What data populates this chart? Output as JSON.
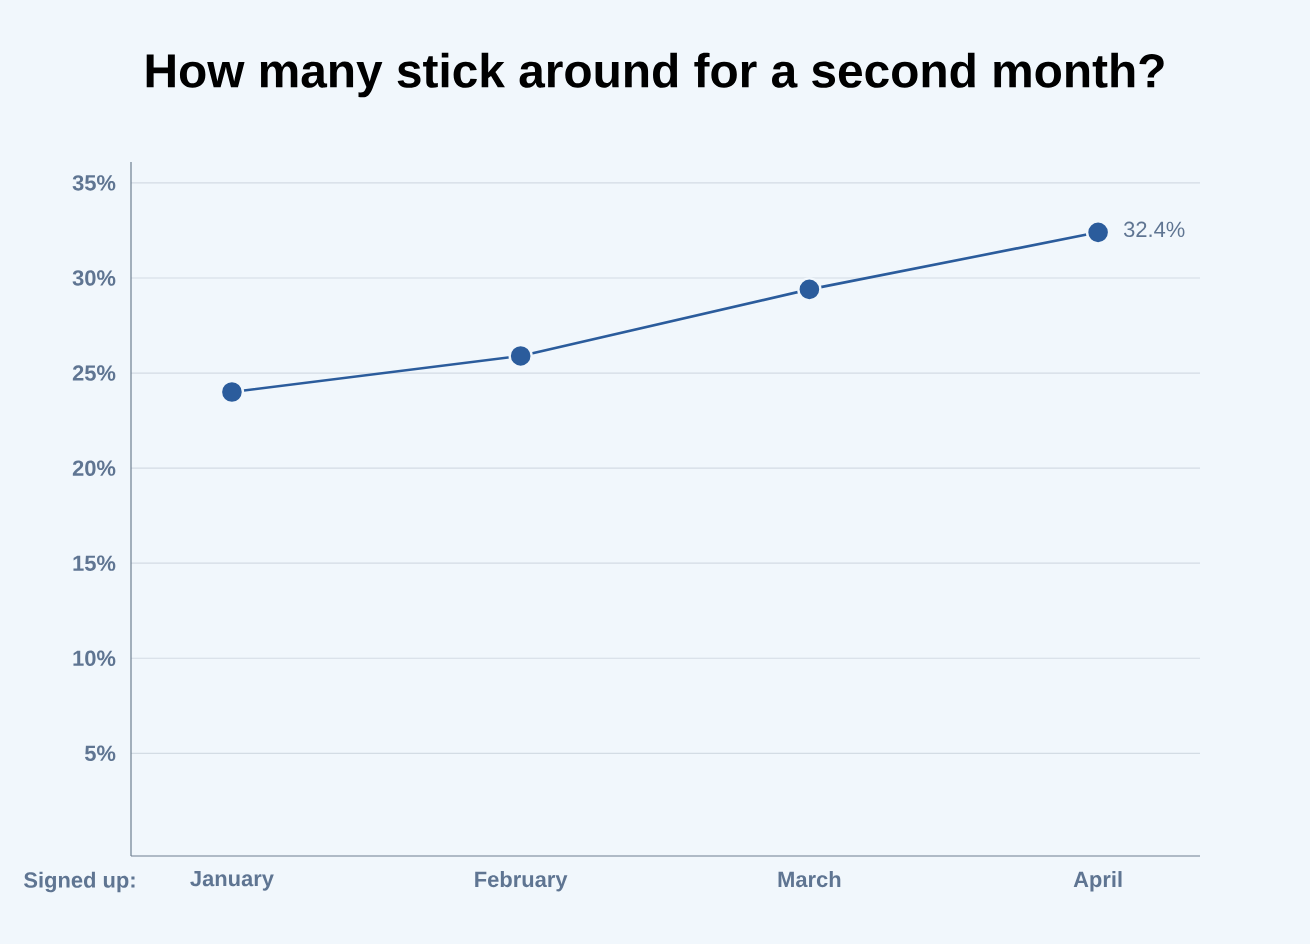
{
  "chart_data": {
    "type": "line",
    "title": "How many stick around for a second month?",
    "xlabel": "Signed up:",
    "categories": [
      "January",
      "February",
      "March",
      "April"
    ],
    "series": [
      {
        "color": "#2b5c9c",
        "values": [
          24.0,
          25.9,
          29.4,
          32.4
        ],
        "value_labels": [
          null,
          null,
          null,
          "32.4%"
        ]
      }
    ],
    "ylim": [
      -0.4,
      36.1
    ],
    "yticks": [
      {
        "value": 5,
        "label": "5%"
      },
      {
        "value": 10,
        "label": "10%"
      },
      {
        "value": 15,
        "label": "15%"
      },
      {
        "value": 20,
        "label": "20%"
      },
      {
        "value": 25,
        "label": "25%"
      },
      {
        "value": 30,
        "label": "30%"
      },
      {
        "value": 35,
        "label": "35%"
      }
    ],
    "grid": "y",
    "marker": "circle",
    "line_style": "solid"
  }
}
